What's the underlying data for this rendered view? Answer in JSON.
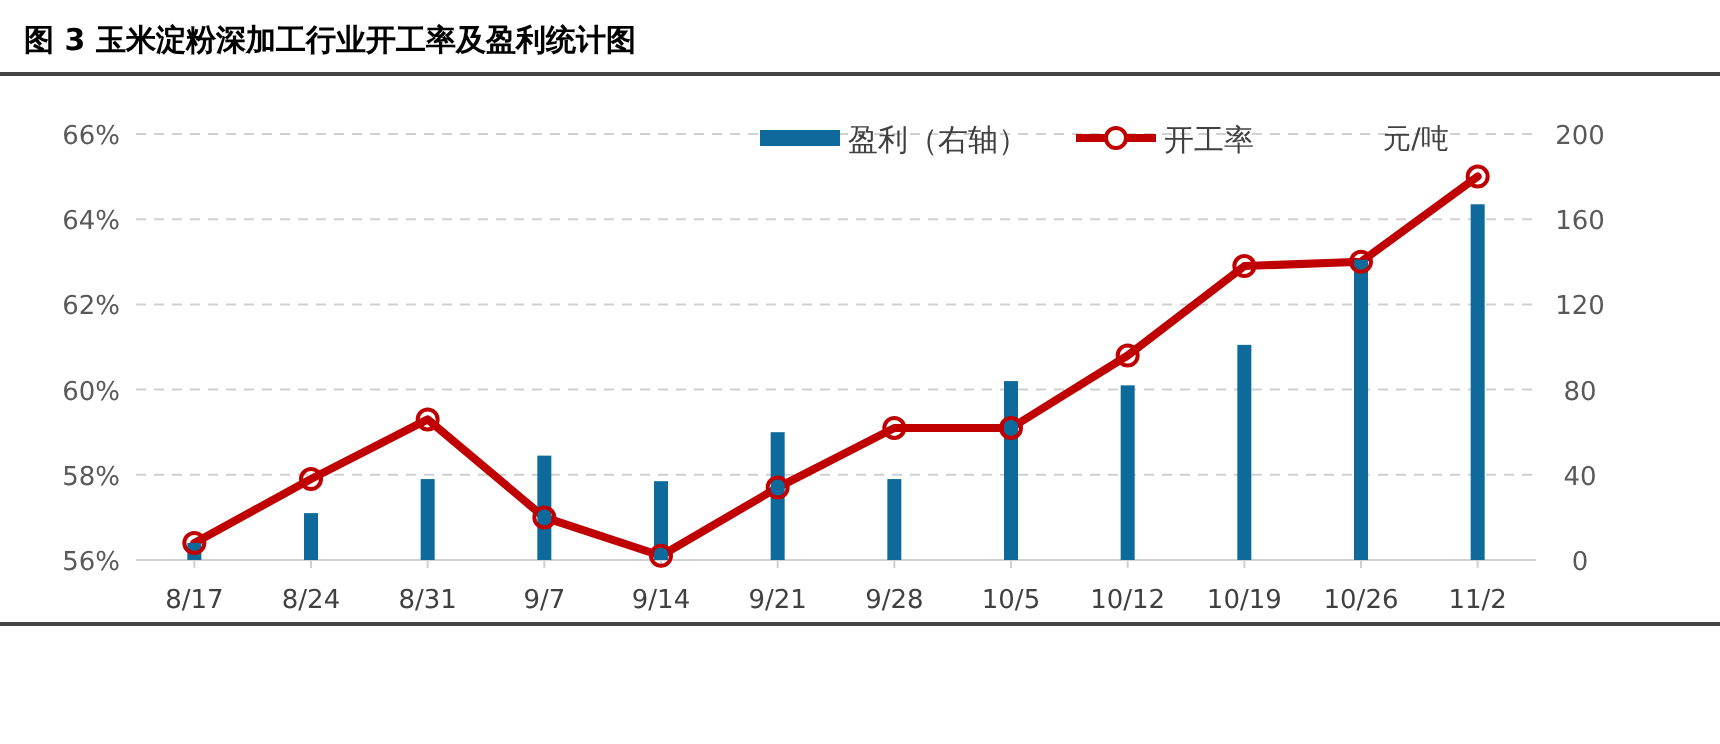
{
  "chart_data": {
    "type": "bar",
    "title": "图 3  玉米淀粉深加工行业开工率及盈利统计图",
    "y2label": "元/吨",
    "categories": [
      "8/17",
      "8/24",
      "8/31",
      "9/7",
      "9/14",
      "9/21",
      "9/28",
      "10/5",
      "10/12",
      "10/19",
      "10/26",
      "11/2"
    ],
    "series": [
      {
        "name": "盈利（右轴）",
        "axis": "y2",
        "color": "#0e6a9a",
        "values": [
          8,
          22,
          38,
          49,
          37,
          60,
          38,
          84,
          82,
          101,
          141,
          167
        ]
      },
      {
        "name": "开工率",
        "type": "line",
        "color": "#c00000",
        "marker": "circle",
        "values": [
          56.4,
          57.9,
          59.3,
          57.0,
          56.1,
          57.7,
          59.1,
          59.1,
          60.8,
          62.9,
          63.0,
          65.0
        ]
      }
    ],
    "ylim": [
      56,
      66
    ],
    "yticks": [
      {
        "value": 56,
        "label": "56%"
      },
      {
        "value": 58,
        "label": "58%"
      },
      {
        "value": 60,
        "label": "60%"
      },
      {
        "value": 62,
        "label": "62%"
      },
      {
        "value": 64,
        "label": "64%"
      },
      {
        "value": 66,
        "label": "66%"
      }
    ],
    "y2lim": [
      0,
      200
    ],
    "y2ticks": [
      0,
      40,
      80,
      120,
      160,
      200
    ],
    "grid": "y",
    "legend": "top"
  }
}
